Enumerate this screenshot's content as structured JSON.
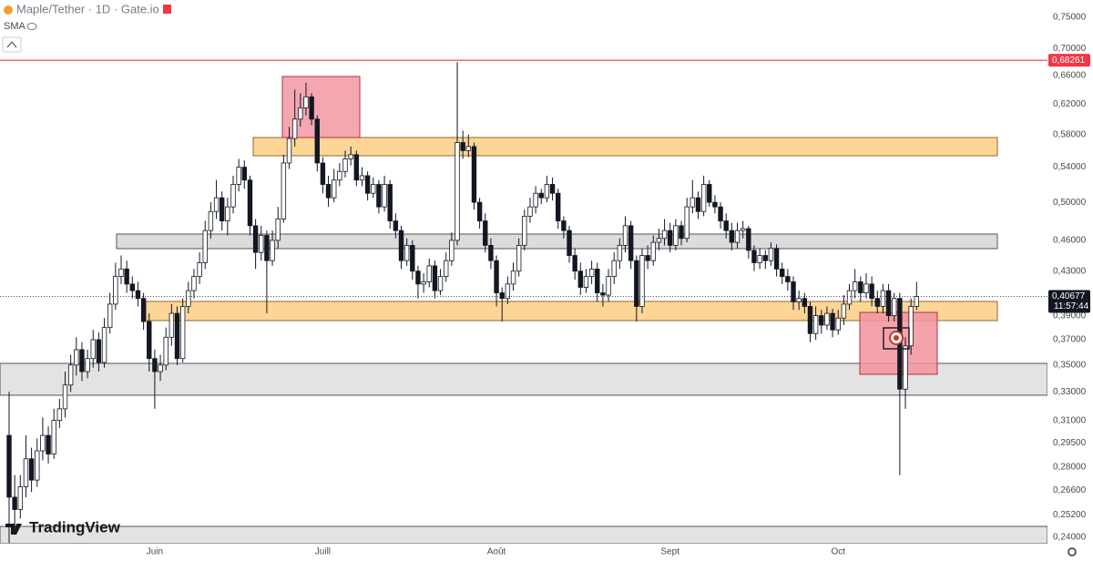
{
  "chart_data": {
    "type": "candlestick",
    "title": "Maple/Tether · 1D · Gate.io",
    "indicator": "SMA",
    "watermark": "TradingView",
    "log_scale": true,
    "up_color": "#ffffff",
    "down_color": "#131722",
    "ylim": [
      0.2366,
      0.779
    ],
    "xlim": [
      -0.5,
      175.5
    ],
    "yticks": [
      {
        "value": 0.75,
        "label": "0,75000"
      },
      {
        "value": 0.7,
        "label": "0,70000"
      },
      {
        "value": 0.66,
        "label": "0,66000"
      },
      {
        "value": 0.62,
        "label": "0,62000"
      },
      {
        "value": 0.58,
        "label": "0,58000"
      },
      {
        "value": 0.54,
        "label": "0,54000"
      },
      {
        "value": 0.5,
        "label": "0,50000"
      },
      {
        "value": 0.46,
        "label": "0,46000"
      },
      {
        "value": 0.43,
        "label": "0,43000"
      },
      {
        "value": 0.39,
        "label": "0,39000"
      },
      {
        "value": 0.37,
        "label": "0,37000"
      },
      {
        "value": 0.35,
        "label": "0,35000"
      },
      {
        "value": 0.33,
        "label": "0,33000"
      },
      {
        "value": 0.31,
        "label": "0,31000"
      },
      {
        "value": 0.295,
        "label": "0,29500"
      },
      {
        "value": 0.28,
        "label": "0,28000"
      },
      {
        "value": 0.266,
        "label": "0,26600"
      },
      {
        "value": 0.252,
        "label": "0,25200"
      },
      {
        "value": 0.24,
        "label": "0,24000"
      }
    ],
    "xticks": [
      {
        "value": 26,
        "label": "Juin"
      },
      {
        "value": 56,
        "label": "Juill"
      },
      {
        "value": 87,
        "label": "Août"
      },
      {
        "value": 118,
        "label": "Sept"
      },
      {
        "value": 148,
        "label": "Oct"
      }
    ],
    "hline": {
      "value": 0.68261,
      "label": "0,68261",
      "color": "#f23645"
    },
    "last_price": {
      "value": 0.40677,
      "label": "0,40677"
    },
    "countdown": "11:57:44",
    "candles": [
      [
        0.3,
        0.33,
        0.237,
        0.262
      ],
      [
        0.262,
        0.275,
        0.245,
        0.255
      ],
      [
        0.255,
        0.275,
        0.25,
        0.268
      ],
      [
        0.268,
        0.3,
        0.262,
        0.285
      ],
      [
        0.285,
        0.292,
        0.265,
        0.272
      ],
      [
        0.272,
        0.298,
        0.268,
        0.29
      ],
      [
        0.29,
        0.312,
        0.284,
        0.3
      ],
      [
        0.3,
        0.306,
        0.282,
        0.288
      ],
      [
        0.288,
        0.318,
        0.285,
        0.31
      ],
      [
        0.31,
        0.325,
        0.305,
        0.318
      ],
      [
        0.318,
        0.345,
        0.312,
        0.335
      ],
      [
        0.335,
        0.358,
        0.33,
        0.35
      ],
      [
        0.35,
        0.372,
        0.342,
        0.362
      ],
      [
        0.362,
        0.368,
        0.338,
        0.345
      ],
      [
        0.345,
        0.362,
        0.34,
        0.355
      ],
      [
        0.355,
        0.378,
        0.348,
        0.37
      ],
      [
        0.37,
        0.376,
        0.345,
        0.352
      ],
      [
        0.352,
        0.388,
        0.348,
        0.38
      ],
      [
        0.38,
        0.41,
        0.375,
        0.4
      ],
      [
        0.4,
        0.438,
        0.395,
        0.425
      ],
      [
        0.425,
        0.445,
        0.418,
        0.432
      ],
      [
        0.432,
        0.44,
        0.41,
        0.418
      ],
      [
        0.418,
        0.425,
        0.405,
        0.412
      ],
      [
        0.412,
        0.42,
        0.398,
        0.405
      ],
      [
        0.405,
        0.41,
        0.378,
        0.385
      ],
      [
        0.385,
        0.392,
        0.345,
        0.355
      ],
      [
        0.355,
        0.362,
        0.318,
        0.345
      ],
      [
        0.345,
        0.358,
        0.338,
        0.35
      ],
      [
        0.35,
        0.38,
        0.346,
        0.372
      ],
      [
        0.372,
        0.4,
        0.365,
        0.392
      ],
      [
        0.392,
        0.398,
        0.35,
        0.355
      ],
      [
        0.355,
        0.405,
        0.352,
        0.398
      ],
      [
        0.398,
        0.42,
        0.392,
        0.412
      ],
      [
        0.412,
        0.432,
        0.405,
        0.425
      ],
      [
        0.425,
        0.448,
        0.418,
        0.438
      ],
      [
        0.438,
        0.48,
        0.432,
        0.47
      ],
      [
        0.47,
        0.5,
        0.462,
        0.49
      ],
      [
        0.49,
        0.525,
        0.482,
        0.505
      ],
      [
        0.505,
        0.512,
        0.47,
        0.48
      ],
      [
        0.48,
        0.505,
        0.465,
        0.495
      ],
      [
        0.495,
        0.53,
        0.488,
        0.52
      ],
      [
        0.52,
        0.55,
        0.512,
        0.54
      ],
      [
        0.54,
        0.548,
        0.515,
        0.525
      ],
      [
        0.525,
        0.53,
        0.465,
        0.475
      ],
      [
        0.475,
        0.482,
        0.432,
        0.448
      ],
      [
        0.448,
        0.475,
        0.44,
        0.465
      ],
      [
        0.465,
        0.47,
        0.392,
        0.44
      ],
      [
        0.44,
        0.47,
        0.435,
        0.46
      ],
      [
        0.46,
        0.495,
        0.452,
        0.482
      ],
      [
        0.482,
        0.555,
        0.478,
        0.545
      ],
      [
        0.545,
        0.59,
        0.538,
        0.575
      ],
      [
        0.575,
        0.64,
        0.565,
        0.6
      ],
      [
        0.6,
        0.635,
        0.59,
        0.615
      ],
      [
        0.615,
        0.65,
        0.605,
        0.63
      ],
      [
        0.63,
        0.635,
        0.592,
        0.6
      ],
      [
        0.6,
        0.605,
        0.535,
        0.545
      ],
      [
        0.545,
        0.552,
        0.51,
        0.52
      ],
      [
        0.52,
        0.53,
        0.495,
        0.505
      ],
      [
        0.505,
        0.538,
        0.5,
        0.525
      ],
      [
        0.525,
        0.545,
        0.518,
        0.535
      ],
      [
        0.535,
        0.56,
        0.528,
        0.55
      ],
      [
        0.55,
        0.565,
        0.542,
        0.555
      ],
      [
        0.555,
        0.56,
        0.518,
        0.525
      ],
      [
        0.525,
        0.54,
        0.518,
        0.53
      ],
      [
        0.53,
        0.535,
        0.502,
        0.51
      ],
      [
        0.51,
        0.528,
        0.505,
        0.52
      ],
      [
        0.52,
        0.525,
        0.488,
        0.495
      ],
      [
        0.495,
        0.53,
        0.49,
        0.52
      ],
      [
        0.52,
        0.525,
        0.472,
        0.48
      ],
      [
        0.48,
        0.488,
        0.462,
        0.47
      ],
      [
        0.47,
        0.475,
        0.432,
        0.44
      ],
      [
        0.44,
        0.462,
        0.435,
        0.455
      ],
      [
        0.455,
        0.46,
        0.422,
        0.43
      ],
      [
        0.43,
        0.435,
        0.405,
        0.418
      ],
      [
        0.418,
        0.428,
        0.41,
        0.42
      ],
      [
        0.42,
        0.442,
        0.415,
        0.435
      ],
      [
        0.435,
        0.44,
        0.405,
        0.412
      ],
      [
        0.412,
        0.432,
        0.408,
        0.425
      ],
      [
        0.425,
        0.448,
        0.42,
        0.44
      ],
      [
        0.44,
        0.468,
        0.435,
        0.46
      ],
      [
        0.46,
        0.68,
        0.455,
        0.57
      ],
      [
        0.57,
        0.585,
        0.55,
        0.56
      ],
      [
        0.56,
        0.58,
        0.552,
        0.565
      ],
      [
        0.565,
        0.57,
        0.492,
        0.5
      ],
      [
        0.5,
        0.505,
        0.472,
        0.48
      ],
      [
        0.48,
        0.488,
        0.448,
        0.455
      ],
      [
        0.455,
        0.462,
        0.432,
        0.44
      ],
      [
        0.44,
        0.445,
        0.398,
        0.41
      ],
      [
        0.41,
        0.415,
        0.385,
        0.405
      ],
      [
        0.405,
        0.425,
        0.4,
        0.418
      ],
      [
        0.418,
        0.438,
        0.412,
        0.43
      ],
      [
        0.43,
        0.462,
        0.425,
        0.455
      ],
      [
        0.455,
        0.492,
        0.45,
        0.485
      ],
      [
        0.485,
        0.505,
        0.478,
        0.495
      ],
      [
        0.495,
        0.518,
        0.488,
        0.51
      ],
      [
        0.51,
        0.515,
        0.498,
        0.505
      ],
      [
        0.505,
        0.53,
        0.5,
        0.52
      ],
      [
        0.52,
        0.528,
        0.502,
        0.51
      ],
      [
        0.51,
        0.515,
        0.472,
        0.48
      ],
      [
        0.48,
        0.485,
        0.462,
        0.47
      ],
      [
        0.47,
        0.475,
        0.438,
        0.445
      ],
      [
        0.445,
        0.452,
        0.422,
        0.43
      ],
      [
        0.43,
        0.438,
        0.408,
        0.415
      ],
      [
        0.415,
        0.432,
        0.41,
        0.425
      ],
      [
        0.425,
        0.44,
        0.418,
        0.432
      ],
      [
        0.432,
        0.438,
        0.402,
        0.41
      ],
      [
        0.41,
        0.418,
        0.398,
        0.408
      ],
      [
        0.408,
        0.432,
        0.402,
        0.425
      ],
      [
        0.425,
        0.448,
        0.418,
        0.44
      ],
      [
        0.44,
        0.462,
        0.432,
        0.455
      ],
      [
        0.455,
        0.485,
        0.448,
        0.475
      ],
      [
        0.475,
        0.48,
        0.432,
        0.44
      ],
      [
        0.44,
        0.445,
        0.385,
        0.398
      ],
      [
        0.398,
        0.452,
        0.392,
        0.445
      ],
      [
        0.445,
        0.455,
        0.432,
        0.44
      ],
      [
        0.44,
        0.465,
        0.435,
        0.458
      ],
      [
        0.458,
        0.472,
        0.45,
        0.462
      ],
      [
        0.462,
        0.482,
        0.455,
        0.47
      ],
      [
        0.47,
        0.478,
        0.448,
        0.455
      ],
      [
        0.455,
        0.482,
        0.45,
        0.475
      ],
      [
        0.475,
        0.48,
        0.455,
        0.462
      ],
      [
        0.462,
        0.505,
        0.458,
        0.495
      ],
      [
        0.495,
        0.525,
        0.488,
        0.505
      ],
      [
        0.505,
        0.512,
        0.482,
        0.49
      ],
      [
        0.49,
        0.53,
        0.485,
        0.52
      ],
      [
        0.52,
        0.525,
        0.495,
        0.5
      ],
      [
        0.5,
        0.508,
        0.488,
        0.495
      ],
      [
        0.495,
        0.5,
        0.472,
        0.48
      ],
      [
        0.48,
        0.488,
        0.462,
        0.47
      ],
      [
        0.47,
        0.478,
        0.45,
        0.458
      ],
      [
        0.458,
        0.478,
        0.452,
        0.47
      ],
      [
        0.47,
        0.48,
        0.462,
        0.472
      ],
      [
        0.472,
        0.475,
        0.442,
        0.45
      ],
      [
        0.45,
        0.455,
        0.43,
        0.438
      ],
      [
        0.438,
        0.452,
        0.432,
        0.445
      ],
      [
        0.445,
        0.45,
        0.432,
        0.44
      ],
      [
        0.44,
        0.458,
        0.435,
        0.452
      ],
      [
        0.452,
        0.456,
        0.425,
        0.432
      ],
      [
        0.432,
        0.438,
        0.418,
        0.425
      ],
      [
        0.425,
        0.432,
        0.412,
        0.42
      ],
      [
        0.42,
        0.425,
        0.395,
        0.402
      ],
      [
        0.402,
        0.412,
        0.395,
        0.405
      ],
      [
        0.405,
        0.41,
        0.392,
        0.398
      ],
      [
        0.398,
        0.402,
        0.368,
        0.375
      ],
      [
        0.375,
        0.398,
        0.37,
        0.39
      ],
      [
        0.39,
        0.395,
        0.375,
        0.382
      ],
      [
        0.382,
        0.398,
        0.378,
        0.392
      ],
      [
        0.392,
        0.396,
        0.372,
        0.378
      ],
      [
        0.378,
        0.395,
        0.374,
        0.388
      ],
      [
        0.388,
        0.408,
        0.382,
        0.4
      ],
      [
        0.4,
        0.418,
        0.395,
        0.412
      ],
      [
        0.412,
        0.432,
        0.405,
        0.42
      ],
      [
        0.42,
        0.425,
        0.402,
        0.41
      ],
      [
        0.41,
        0.428,
        0.405,
        0.418
      ],
      [
        0.418,
        0.425,
        0.398,
        0.405
      ],
      [
        0.405,
        0.412,
        0.392,
        0.398
      ],
      [
        0.398,
        0.418,
        0.392,
        0.412
      ],
      [
        0.412,
        0.418,
        0.385,
        0.39
      ],
      [
        0.39,
        0.41,
        0.385,
        0.405
      ],
      [
        0.405,
        0.41,
        0.275,
        0.332
      ],
      [
        0.332,
        0.372,
        0.318,
        0.365
      ],
      [
        0.365,
        0.405,
        0.358,
        0.398
      ],
      [
        0.398,
        0.42,
        0.395,
        0.40677
      ]
    ]
  }
}
